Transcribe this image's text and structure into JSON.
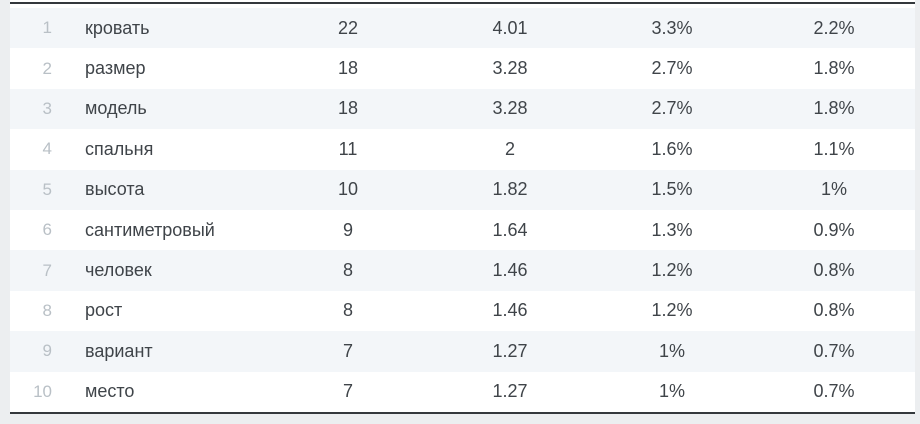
{
  "table": {
    "rows": [
      {
        "rank": "1",
        "word": "кровать",
        "count": "22",
        "density": "4.01",
        "pct1": "3.3%",
        "pct2": "2.2%"
      },
      {
        "rank": "2",
        "word": "размер",
        "count": "18",
        "density": "3.28",
        "pct1": "2.7%",
        "pct2": "1.8%"
      },
      {
        "rank": "3",
        "word": "модель",
        "count": "18",
        "density": "3.28",
        "pct1": "2.7%",
        "pct2": "1.8%"
      },
      {
        "rank": "4",
        "word": "спальня",
        "count": "11",
        "density": "2",
        "pct1": "1.6%",
        "pct2": "1.1%"
      },
      {
        "rank": "5",
        "word": "высота",
        "count": "10",
        "density": "1.82",
        "pct1": "1.5%",
        "pct2": "1%"
      },
      {
        "rank": "6",
        "word": "сантиметровый",
        "count": "9",
        "density": "1.64",
        "pct1": "1.3%",
        "pct2": "0.9%"
      },
      {
        "rank": "7",
        "word": "человек",
        "count": "8",
        "density": "1.46",
        "pct1": "1.2%",
        "pct2": "0.8%"
      },
      {
        "rank": "8",
        "word": "рост",
        "count": "8",
        "density": "1.46",
        "pct1": "1.2%",
        "pct2": "0.8%"
      },
      {
        "rank": "9",
        "word": "вариант",
        "count": "7",
        "density": "1.27",
        "pct1": "1%",
        "pct2": "0.7%"
      },
      {
        "rank": "10",
        "word": "место",
        "count": "7",
        "density": "1.27",
        "pct1": "1%",
        "pct2": "0.7%"
      }
    ]
  },
  "colors": {
    "page_background": "#eceef0",
    "row_alt_background": "#f3f6f9",
    "row_background": "#ffffff",
    "text": "#3f4449",
    "rank_text": "#b9c0c6",
    "rule": "#34383c"
  }
}
